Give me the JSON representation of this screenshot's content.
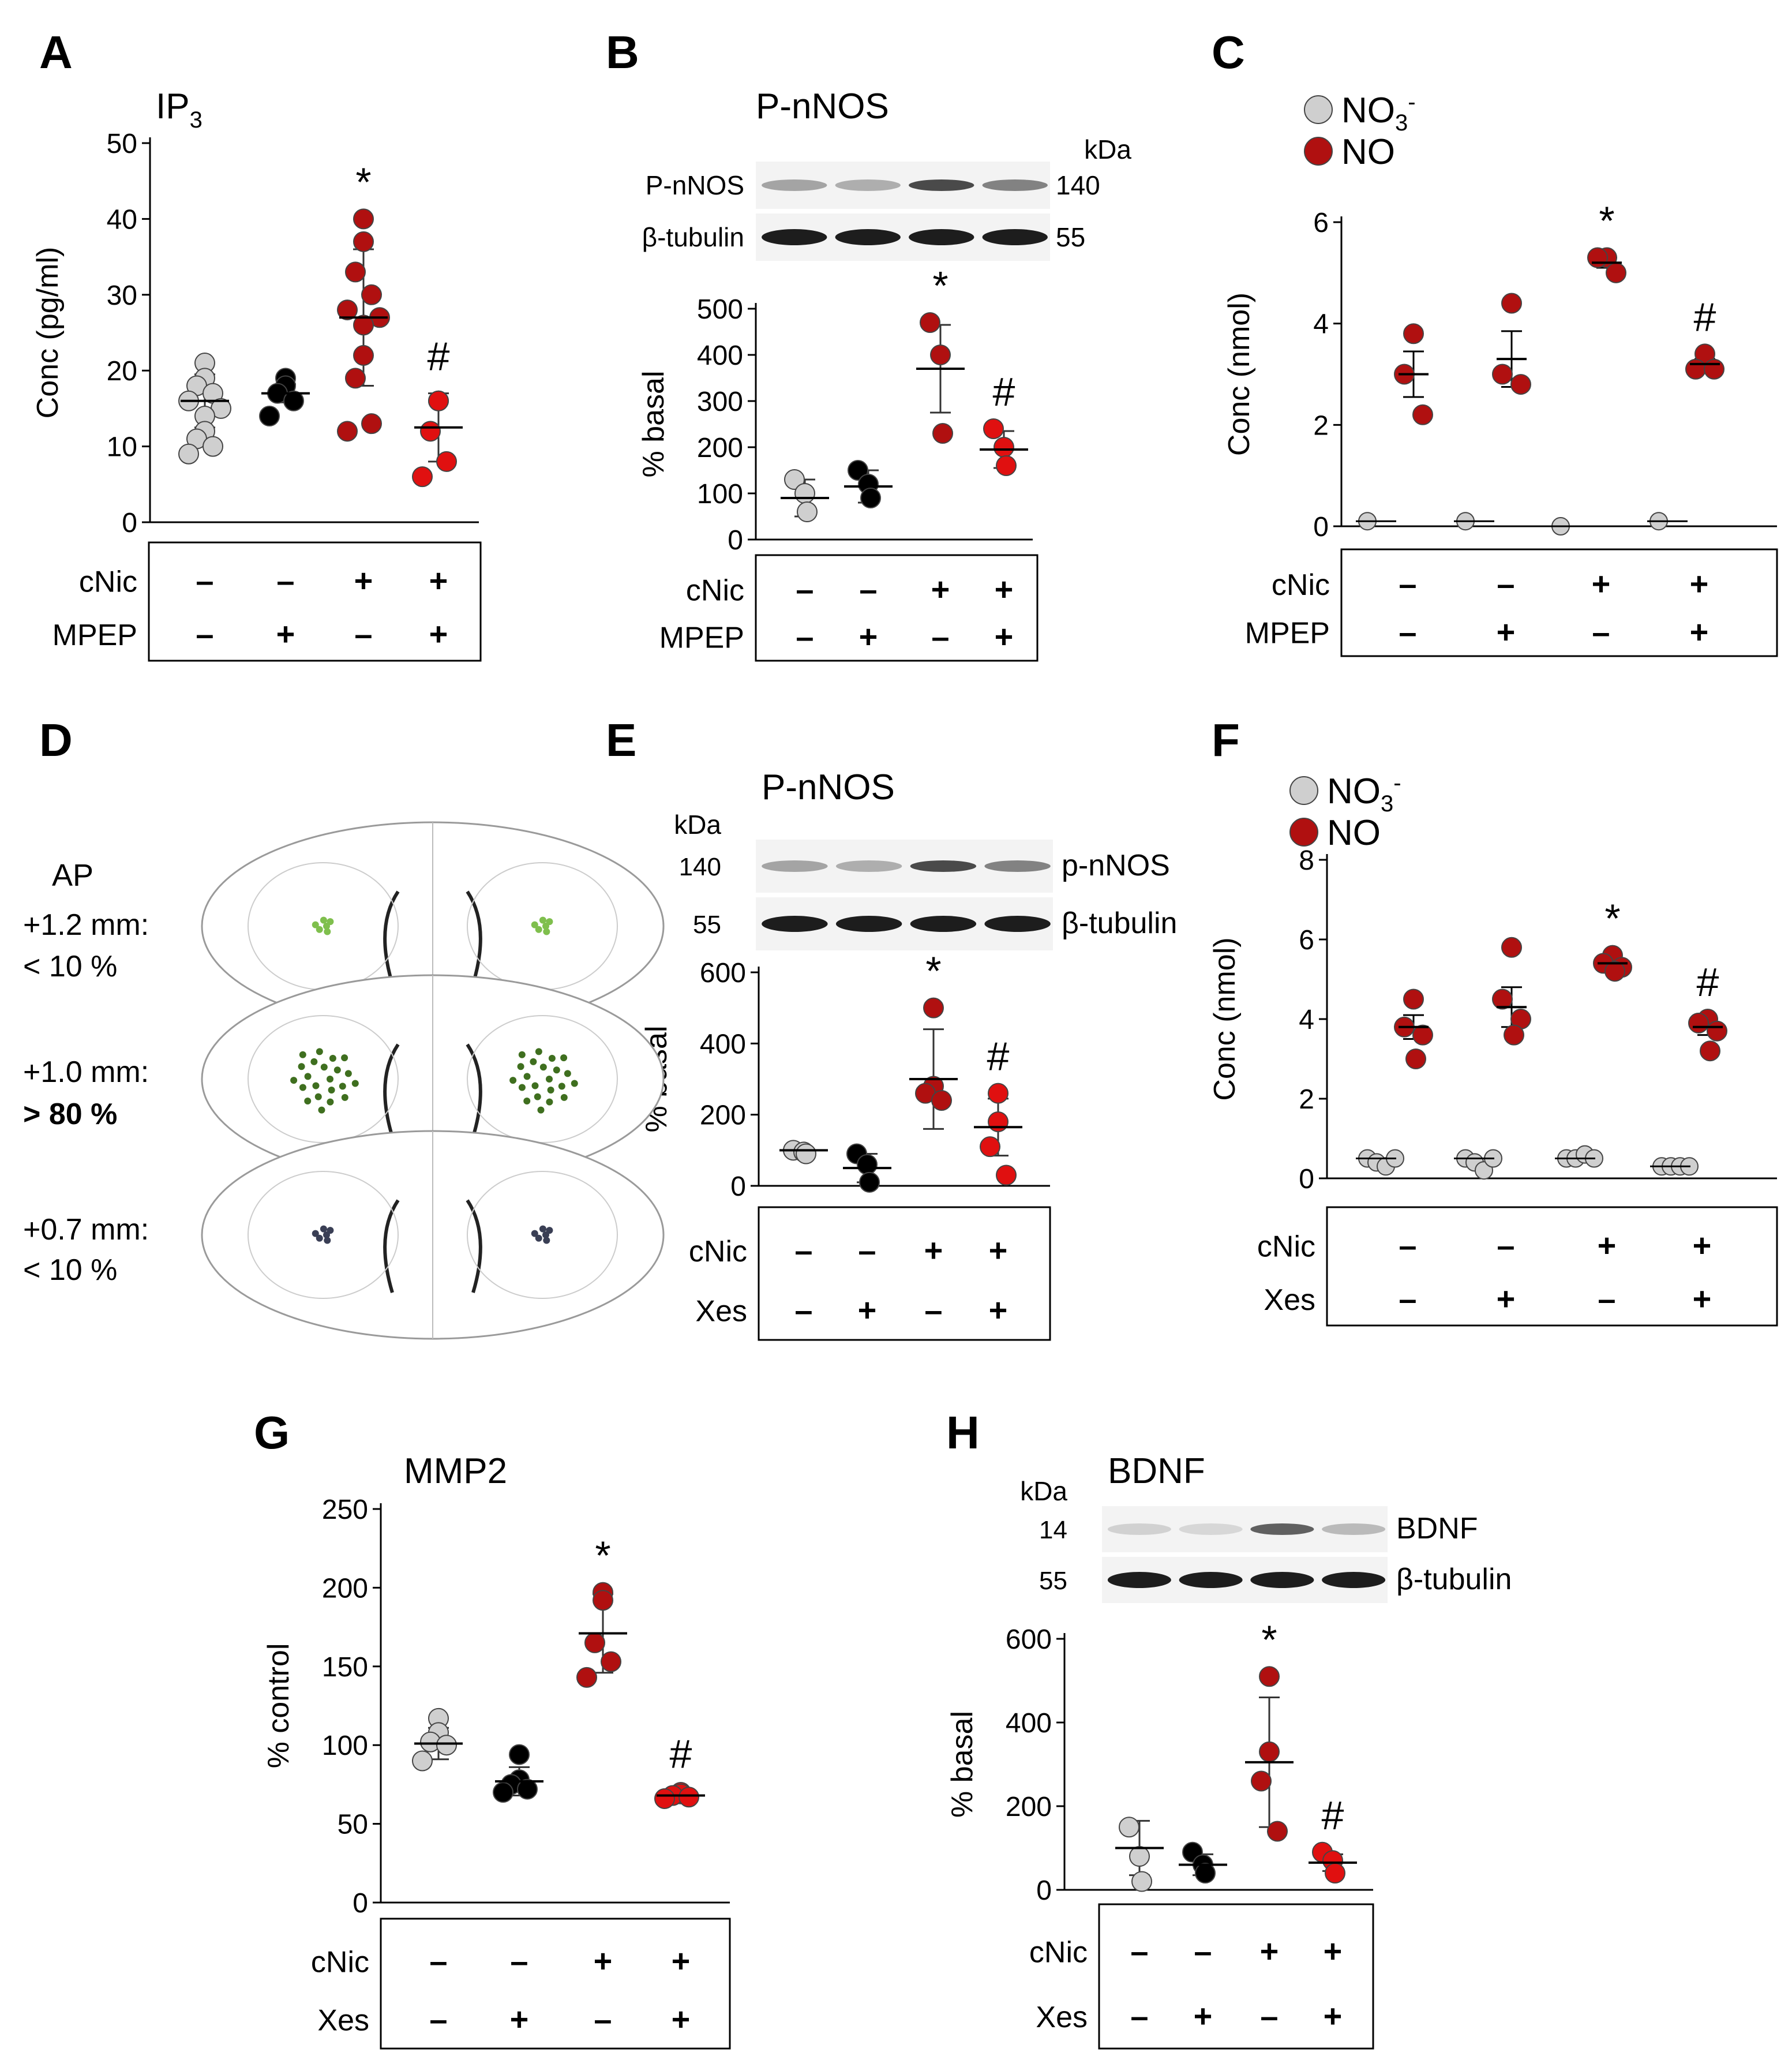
{
  "figure": {
    "description": "Multi-panel scientific figure (A–H) with dot plots and western blots",
    "panel_letters": [
      "A",
      "B",
      "C",
      "D",
      "E",
      "F",
      "G",
      "H"
    ],
    "colors": {
      "control": "#cfcfcf",
      "mpep_xes": "#000000",
      "cnic": "#b01010",
      "cnic_inhib": "#e01010",
      "no3": "#cfcfcf",
      "no": "#b01010",
      "green_light": "#7fbf4d",
      "green_dark": "#3f6f1f",
      "slate": "#3a3f55"
    }
  },
  "chart_data": [
    {
      "panel": "A",
      "type": "scatter",
      "title": "IP",
      "title_sub": "3",
      "ylabel": "Conc (pg/ml)",
      "ylim": [
        0,
        50
      ],
      "yticks": [
        0,
        10,
        20,
        30,
        40,
        50
      ],
      "groups": [
        {
          "cnic": "–",
          "mod": "–",
          "color": "#cfcfcf",
          "mean": 16,
          "sd": 3.5,
          "points": [
            21,
            19,
            18,
            17,
            16,
            15,
            14,
            12,
            11,
            10,
            9
          ]
        },
        {
          "cnic": "–",
          "mod": "+",
          "color": "#000000",
          "mean": 17,
          "sd": 1.2,
          "points": [
            19,
            18,
            17,
            16,
            14
          ]
        },
        {
          "cnic": "+",
          "mod": "–",
          "color": "#b01010",
          "mean": 27,
          "sd": 9,
          "points": [
            40,
            37,
            33,
            30,
            28,
            27,
            26,
            22,
            19,
            13,
            12
          ]
        },
        {
          "cnic": "+",
          "mod": "+",
          "color": "#e01010",
          "mean": 12.5,
          "sd": 4.5,
          "points": [
            16,
            16,
            12,
            8,
            6
          ]
        }
      ],
      "annotations": [
        "",
        "",
        "*",
        "#"
      ],
      "row_labels": [
        "cNic",
        "MPEP"
      ]
    },
    {
      "panel": "B",
      "type": "scatter",
      "title": "P-nNOS",
      "ylabel": "% basal",
      "ylim": [
        0,
        500
      ],
      "yticks": [
        0,
        100,
        200,
        300,
        400,
        500
      ],
      "groups": [
        {
          "cnic": "–",
          "mod": "–",
          "color": "#cfcfcf",
          "mean": 90,
          "sd": 40,
          "points": [
            130,
            100,
            60
          ]
        },
        {
          "cnic": "–",
          "mod": "+",
          "color": "#000000",
          "mean": 115,
          "sd": 35,
          "points": [
            150,
            120,
            90
          ]
        },
        {
          "cnic": "+",
          "mod": "–",
          "color": "#b01010",
          "mean": 370,
          "sd": 95,
          "points": [
            470,
            400,
            230
          ]
        },
        {
          "cnic": "+",
          "mod": "+",
          "color": "#e01010",
          "mean": 195,
          "sd": 40,
          "points": [
            240,
            200,
            160
          ]
        }
      ],
      "annotations": [
        "",
        "",
        "*",
        "#"
      ],
      "row_labels": [
        "cNic",
        "MPEP"
      ],
      "blot": {
        "unit": "kDa",
        "rows": [
          {
            "label": "P-nNOS",
            "kda": "140"
          },
          {
            "label": "β-tubulin",
            "kda": "55"
          }
        ]
      }
    },
    {
      "panel": "C",
      "type": "scatter",
      "title": "",
      "ylabel": "Conc (nmol)",
      "ylim": [
        0,
        6
      ],
      "yticks": [
        0,
        2,
        4,
        6
      ],
      "legend": [
        {
          "label": "NO",
          "sub": "3",
          "sup": "-",
          "color": "#cfcfcf"
        },
        {
          "label": "NO",
          "sub": "",
          "sup": "",
          "color": "#b01010"
        }
      ],
      "groups": [
        {
          "cnic": "–",
          "mod": "–",
          "no3": 0.1,
          "no_points": [
            3.8,
            3.0,
            2.2
          ],
          "no_mean": 3.0,
          "no_sem": 0.45
        },
        {
          "cnic": "–",
          "mod": "+",
          "no3": 0.1,
          "no_points": [
            4.4,
            3.0,
            2.8
          ],
          "no_mean": 3.3,
          "no_sem": 0.55
        },
        {
          "cnic": "+",
          "mod": "–",
          "no3": 0.0,
          "no_points": [
            5.3,
            5.3,
            5.0
          ],
          "no_mean": 5.2,
          "no_sem": 0.1
        },
        {
          "cnic": "+",
          "mod": "+",
          "no3": 0.1,
          "no_points": [
            3.4,
            3.1,
            3.1
          ],
          "no_mean": 3.2,
          "no_sem": 0.1
        }
      ],
      "annotations": [
        "",
        "",
        "*",
        "#"
      ],
      "row_labels": [
        "cNic",
        "MPEP"
      ]
    },
    {
      "panel": "E",
      "type": "scatter",
      "title": "P-nNOS",
      "ylabel": "% basal",
      "ylim": [
        0,
        600
      ],
      "yticks": [
        0,
        200,
        400,
        600
      ],
      "groups": [
        {
          "cnic": "–",
          "mod": "–",
          "color": "#cfcfcf",
          "mean": 100,
          "sd": 5,
          "points": [
            100,
            95,
            90
          ]
        },
        {
          "cnic": "–",
          "mod": "+",
          "color": "#000000",
          "mean": 50,
          "sd": 40,
          "points": [
            90,
            60,
            10
          ]
        },
        {
          "cnic": "+",
          "mod": "–",
          "color": "#b01010",
          "mean": 300,
          "sd": 140,
          "points": [
            500,
            280,
            260,
            240
          ]
        },
        {
          "cnic": "+",
          "mod": "+",
          "color": "#e01010",
          "mean": 165,
          "sd": 80,
          "points": [
            260,
            180,
            110,
            30
          ]
        }
      ],
      "annotations": [
        "",
        "",
        "*",
        "#"
      ],
      "row_labels": [
        "cNic",
        "Xes"
      ],
      "blot": {
        "unit": "kDa",
        "rows": [
          {
            "label": "p-nNOS",
            "kda": "140"
          },
          {
            "label": "β-tubulin",
            "kda": "55"
          }
        ]
      }
    },
    {
      "panel": "F",
      "type": "scatter",
      "title": "",
      "ylabel": "Conc (nmol)",
      "ylim": [
        0,
        8
      ],
      "yticks": [
        0,
        2,
        4,
        6,
        8
      ],
      "legend": [
        {
          "label": "NO",
          "sub": "3",
          "sup": "-",
          "color": "#cfcfcf"
        },
        {
          "label": "NO",
          "sub": "",
          "sup": "",
          "color": "#b01010"
        }
      ],
      "groups": [
        {
          "cnic": "–",
          "mod": "–",
          "no3_points": [
            0.5,
            0.4,
            0.3,
            0.5
          ],
          "no_points": [
            4.5,
            3.8,
            3.6,
            3.0
          ],
          "no_mean": 3.8,
          "no_sem": 0.3
        },
        {
          "cnic": "–",
          "mod": "+",
          "no3_points": [
            0.5,
            0.4,
            0.2,
            0.5
          ],
          "no_points": [
            5.8,
            4.5,
            4.0,
            3.6
          ],
          "no_mean": 4.3,
          "no_sem": 0.5
        },
        {
          "cnic": "+",
          "mod": "–",
          "no3_points": [
            0.5,
            0.5,
            0.6,
            0.5
          ],
          "no_points": [
            5.6,
            5.4,
            5.3,
            5.2
          ],
          "no_mean": 5.4,
          "no_sem": 0.1
        },
        {
          "cnic": "+",
          "mod": "+",
          "no3_points": [
            0.3,
            0.3,
            0.3,
            0.3
          ],
          "no_points": [
            4.0,
            3.9,
            3.7,
            3.2
          ],
          "no_mean": 3.8,
          "no_sem": 0.2
        }
      ],
      "annotations": [
        "",
        "",
        "*",
        "#"
      ],
      "row_labels": [
        "cNic",
        "Xes"
      ]
    },
    {
      "panel": "G",
      "type": "scatter",
      "title": "MMP2",
      "ylabel": "% control",
      "ylim": [
        0,
        250
      ],
      "yticks": [
        0,
        50,
        100,
        150,
        200,
        250
      ],
      "groups": [
        {
          "cnic": "–",
          "mod": "–",
          "color": "#cfcfcf",
          "mean": 101,
          "sd": 10,
          "points": [
            117,
            108,
            102,
            100,
            90
          ]
        },
        {
          "cnic": "–",
          "mod": "+",
          "color": "#000000",
          "mean": 77,
          "sd": 9,
          "points": [
            94,
            78,
            75,
            72,
            70
          ]
        },
        {
          "cnic": "+",
          "mod": "–",
          "color": "#b01010",
          "mean": 171,
          "sd": 25,
          "points": [
            197,
            192,
            165,
            153,
            143
          ]
        },
        {
          "cnic": "+",
          "mod": "+",
          "color": "#e01010",
          "mean": 68,
          "sd": 3,
          "points": [
            70,
            69,
            68,
            67,
            66
          ]
        }
      ],
      "annotations": [
        "",
        "",
        "*",
        "#"
      ],
      "row_labels": [
        "cNic",
        "Xes"
      ]
    },
    {
      "panel": "H",
      "type": "scatter",
      "title": "BDNF",
      "ylabel": "% basal",
      "ylim": [
        0,
        600
      ],
      "yticks": [
        0,
        200,
        400,
        600
      ],
      "groups": [
        {
          "cnic": "–",
          "mod": "–",
          "color": "#cfcfcf",
          "mean": 100,
          "sd": 65,
          "points": [
            150,
            80,
            20
          ]
        },
        {
          "cnic": "–",
          "mod": "+",
          "color": "#000000",
          "mean": 60,
          "sd": 25,
          "points": [
            90,
            60,
            40
          ]
        },
        {
          "cnic": "+",
          "mod": "–",
          "color": "#b01010",
          "mean": 305,
          "sd": 155,
          "points": [
            510,
            330,
            260,
            140
          ]
        },
        {
          "cnic": "+",
          "mod": "+",
          "color": "#e01010",
          "mean": 65,
          "sd": 20,
          "points": [
            90,
            70,
            40
          ]
        }
      ],
      "annotations": [
        "",
        "",
        "*",
        "#"
      ],
      "row_labels": [
        "cNic",
        "Xes"
      ],
      "blot": {
        "unit": "kDa",
        "rows": [
          {
            "label": "BDNF",
            "kda": "14"
          },
          {
            "label": "β-tubulin",
            "kda": "55"
          }
        ]
      }
    }
  ],
  "panel_d": {
    "header": "AP",
    "levels": [
      {
        "label": "+1.2 mm:",
        "pct": "< 10 %",
        "color": "#7fbf4d"
      },
      {
        "label": "+1.0 mm:",
        "pct": "> 80 %",
        "color": "#3f6f1f"
      },
      {
        "label": "+0.7 mm:",
        "pct": "< 10 %",
        "color": "#3a3f55"
      }
    ]
  }
}
